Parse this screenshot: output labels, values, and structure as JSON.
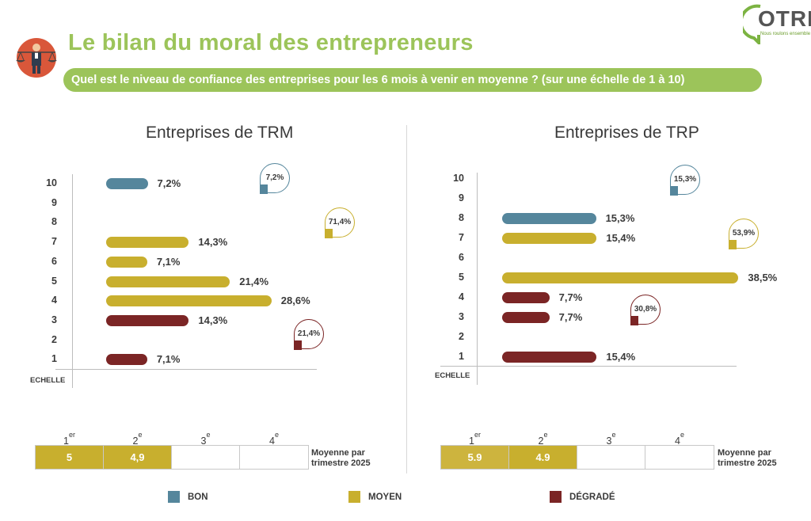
{
  "header": {
    "title": "Le bilan du moral des entrepreneurs",
    "subtitle": "Quel est le niveau de confiance des entreprises pour les 6 mois à venir en moyenne ? (sur une échelle de 1 à 10)",
    "logo_text": "OTRE",
    "logo_sub": "Nous roulons ensemble"
  },
  "colors": {
    "bon": "#55869c",
    "moyen": "#c8af2e",
    "degrade": "#7b2525",
    "accent": "#9cc45a"
  },
  "chart_data": [
    {
      "type": "bar",
      "title": "Entreprises de TRM",
      "axis_label": "ECHELLE",
      "scale": [
        "10",
        "9",
        "8",
        "7",
        "6",
        "5",
        "4",
        "3",
        "2",
        "1"
      ],
      "bars": [
        {
          "level": "10",
          "value": 7.2,
          "label": "7,2%",
          "category": "bon"
        },
        {
          "level": "7",
          "value": 14.3,
          "label": "14,3%",
          "category": "moyen"
        },
        {
          "level": "6",
          "value": 7.1,
          "label": "7,1%",
          "category": "moyen"
        },
        {
          "level": "5",
          "value": 21.4,
          "label": "21,4%",
          "category": "moyen"
        },
        {
          "level": "4",
          "value": 28.6,
          "label": "28,6%",
          "category": "moyen"
        },
        {
          "level": "3",
          "value": 14.3,
          "label": "14,3%",
          "category": "degrade"
        },
        {
          "level": "1",
          "value": 7.1,
          "label": "7,1%",
          "category": "degrade"
        }
      ],
      "bubbles": [
        {
          "category": "bon",
          "label": "7,2%"
        },
        {
          "category": "moyen",
          "label": "71,4%"
        },
        {
          "category": "degrade",
          "label": "21,4%"
        }
      ],
      "quarters": {
        "headers": [
          {
            "num": "1",
            "sup": "er"
          },
          {
            "num": "2",
            "sup": "e"
          },
          {
            "num": "3",
            "sup": "e"
          },
          {
            "num": "4",
            "sup": "e"
          }
        ],
        "values": [
          "5",
          "4,9",
          "",
          ""
        ],
        "caption_line1": "Moyenne par",
        "caption_line2": "trimestre 2025"
      }
    },
    {
      "type": "bar",
      "title": "Entreprises de TRP",
      "axis_label": "ECHELLE",
      "scale": [
        "10",
        "9",
        "8",
        "7",
        "6",
        "5",
        "4",
        "3",
        "2",
        "1"
      ],
      "bars": [
        {
          "level": "8",
          "value": 15.3,
          "label": "15,3%",
          "category": "bon"
        },
        {
          "level": "7",
          "value": 15.4,
          "label": "15,4%",
          "category": "moyen"
        },
        {
          "level": "5",
          "value": 38.5,
          "label": "38,5%",
          "category": "moyen"
        },
        {
          "level": "4",
          "value": 7.7,
          "label": "7,7%",
          "category": "degrade"
        },
        {
          "level": "3",
          "value": 7.7,
          "label": "7,7%",
          "category": "degrade"
        },
        {
          "level": "1",
          "value": 15.4,
          "label": "15,4%",
          "category": "degrade"
        }
      ],
      "bubbles": [
        {
          "category": "bon",
          "label": "15,3%"
        },
        {
          "category": "moyen",
          "label": "53,9%"
        },
        {
          "category": "degrade",
          "label": "30,8%"
        }
      ],
      "quarters": {
        "headers": [
          {
            "num": "1",
            "sup": "er"
          },
          {
            "num": "2",
            "sup": "e"
          },
          {
            "num": "3",
            "sup": "e"
          },
          {
            "num": "4",
            "sup": "e"
          }
        ],
        "values": [
          "5.9",
          "4.9",
          "",
          ""
        ],
        "caption_line1": "Moyenne par",
        "caption_line2": "trimestre 2025"
      }
    }
  ],
  "legend": [
    {
      "category": "bon",
      "label": "BON"
    },
    {
      "category": "moyen",
      "label": "MOYEN"
    },
    {
      "category": "degrade",
      "label": "DÉGRADÉ"
    }
  ]
}
